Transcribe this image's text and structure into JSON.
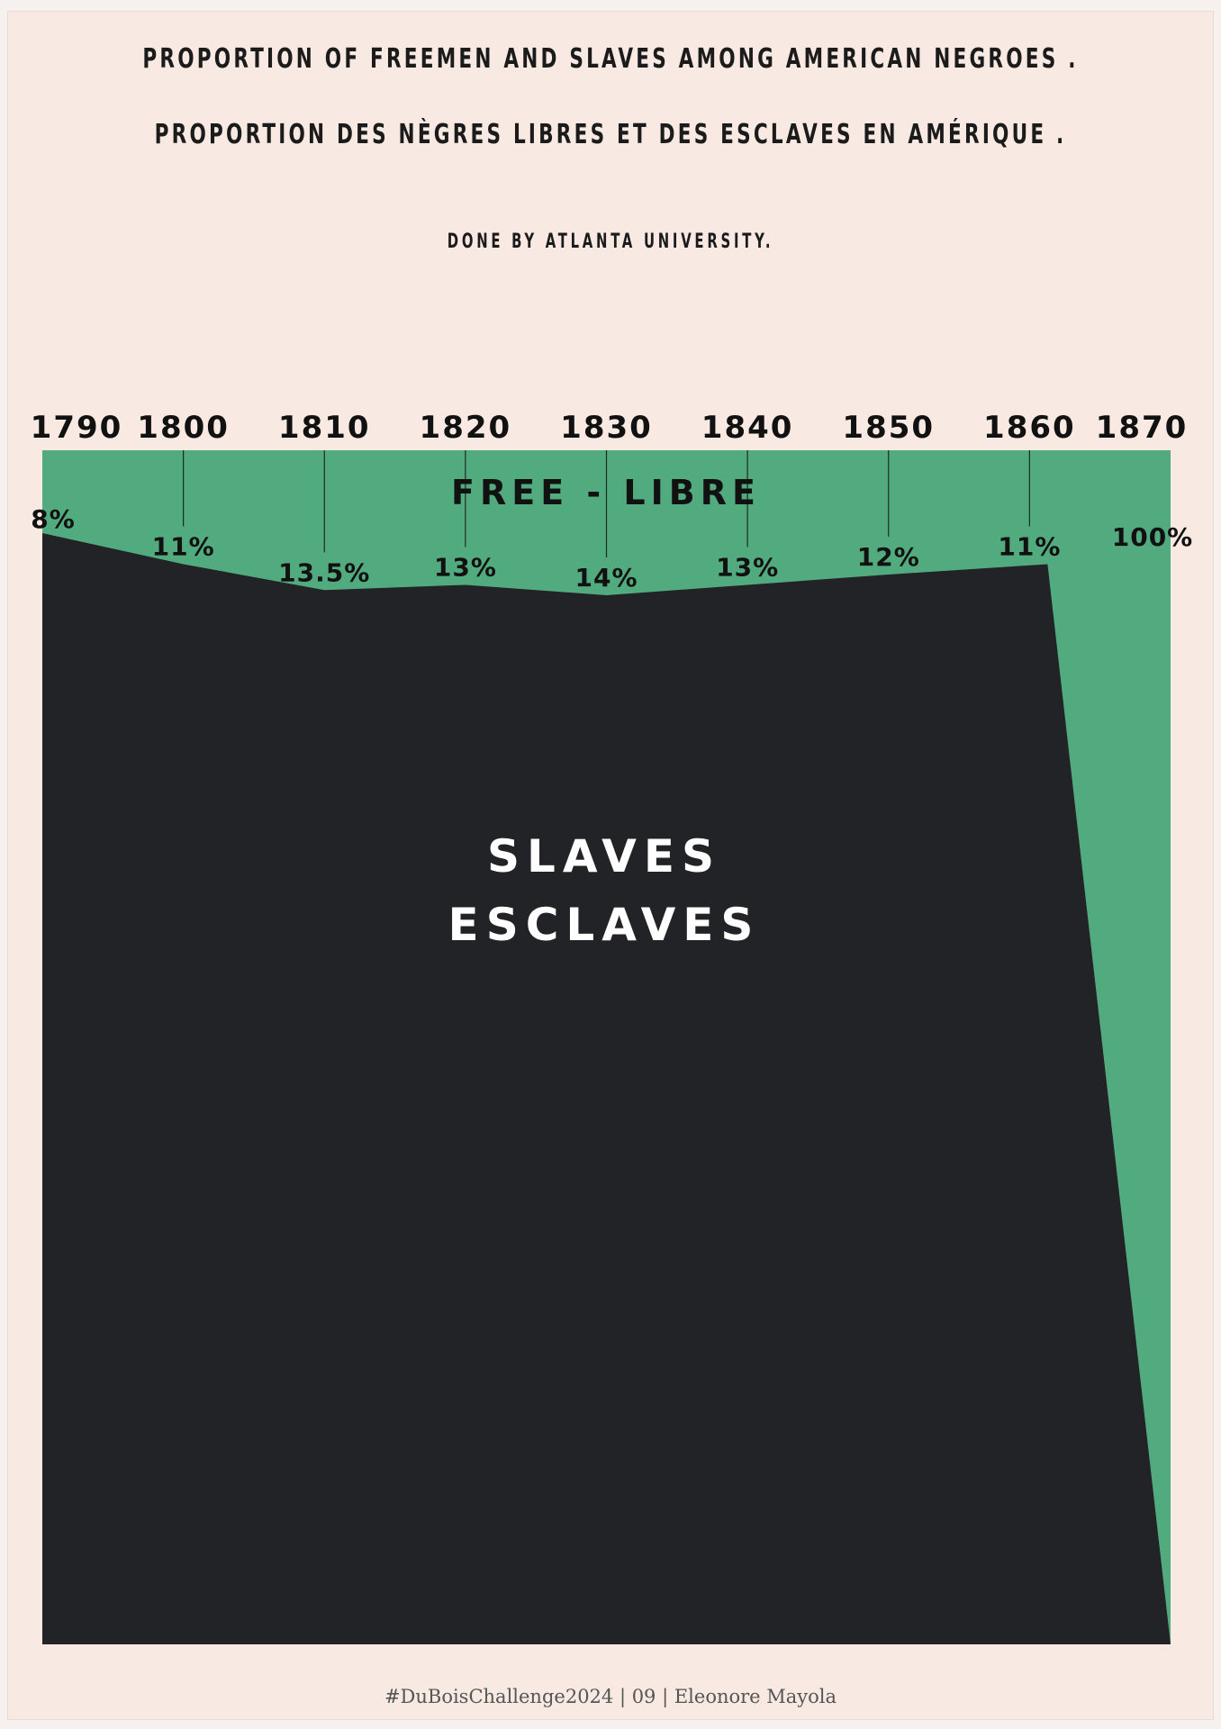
{
  "title_en": "PROPORTION OF FREEMEN AND SLAVES AMONG AMERICAN NEGROES .",
  "title_fr": "PROPORTION DES NÈGRES LIBRES ET DES ESCLAVES EN AMÉRIQUE .",
  "subtitle": "DONE BY ATLANTA UNIVERSITY.",
  "caption": "#DuBoisChallenge2024 | 09 | Eleonore Mayola",
  "labels": {
    "free": "FREE - LIBRE",
    "slaves_en": "SLAVES",
    "slaves_fr": "ESCLAVES"
  },
  "colors": {
    "free": "#52ab7f",
    "slaves": "#222326",
    "background": "#f9e9e3"
  },
  "chart_data": {
    "type": "area",
    "x": [
      1790,
      1800,
      1810,
      1820,
      1830,
      1840,
      1850,
      1860,
      1870
    ],
    "tick_labels": [
      "1790",
      "1800",
      "1810",
      "1820",
      "1830",
      "1840",
      "1850",
      "1860",
      "1870"
    ],
    "series": [
      {
        "name": "FREE - LIBRE",
        "values": [
          8,
          11,
          13.5,
          13,
          14,
          13,
          12,
          11,
          100
        ],
        "value_labels": [
          "8%",
          "11%",
          "13.5%",
          "13%",
          "14%",
          "13%",
          "12%",
          "11%",
          "100%"
        ]
      },
      {
        "name": "SLAVES ESCLAVES",
        "values": [
          92,
          89,
          86.5,
          87,
          86,
          87,
          88,
          89,
          0
        ]
      }
    ],
    "ylim": [
      0,
      100
    ],
    "ticks_position": "top",
    "grid": false
  }
}
